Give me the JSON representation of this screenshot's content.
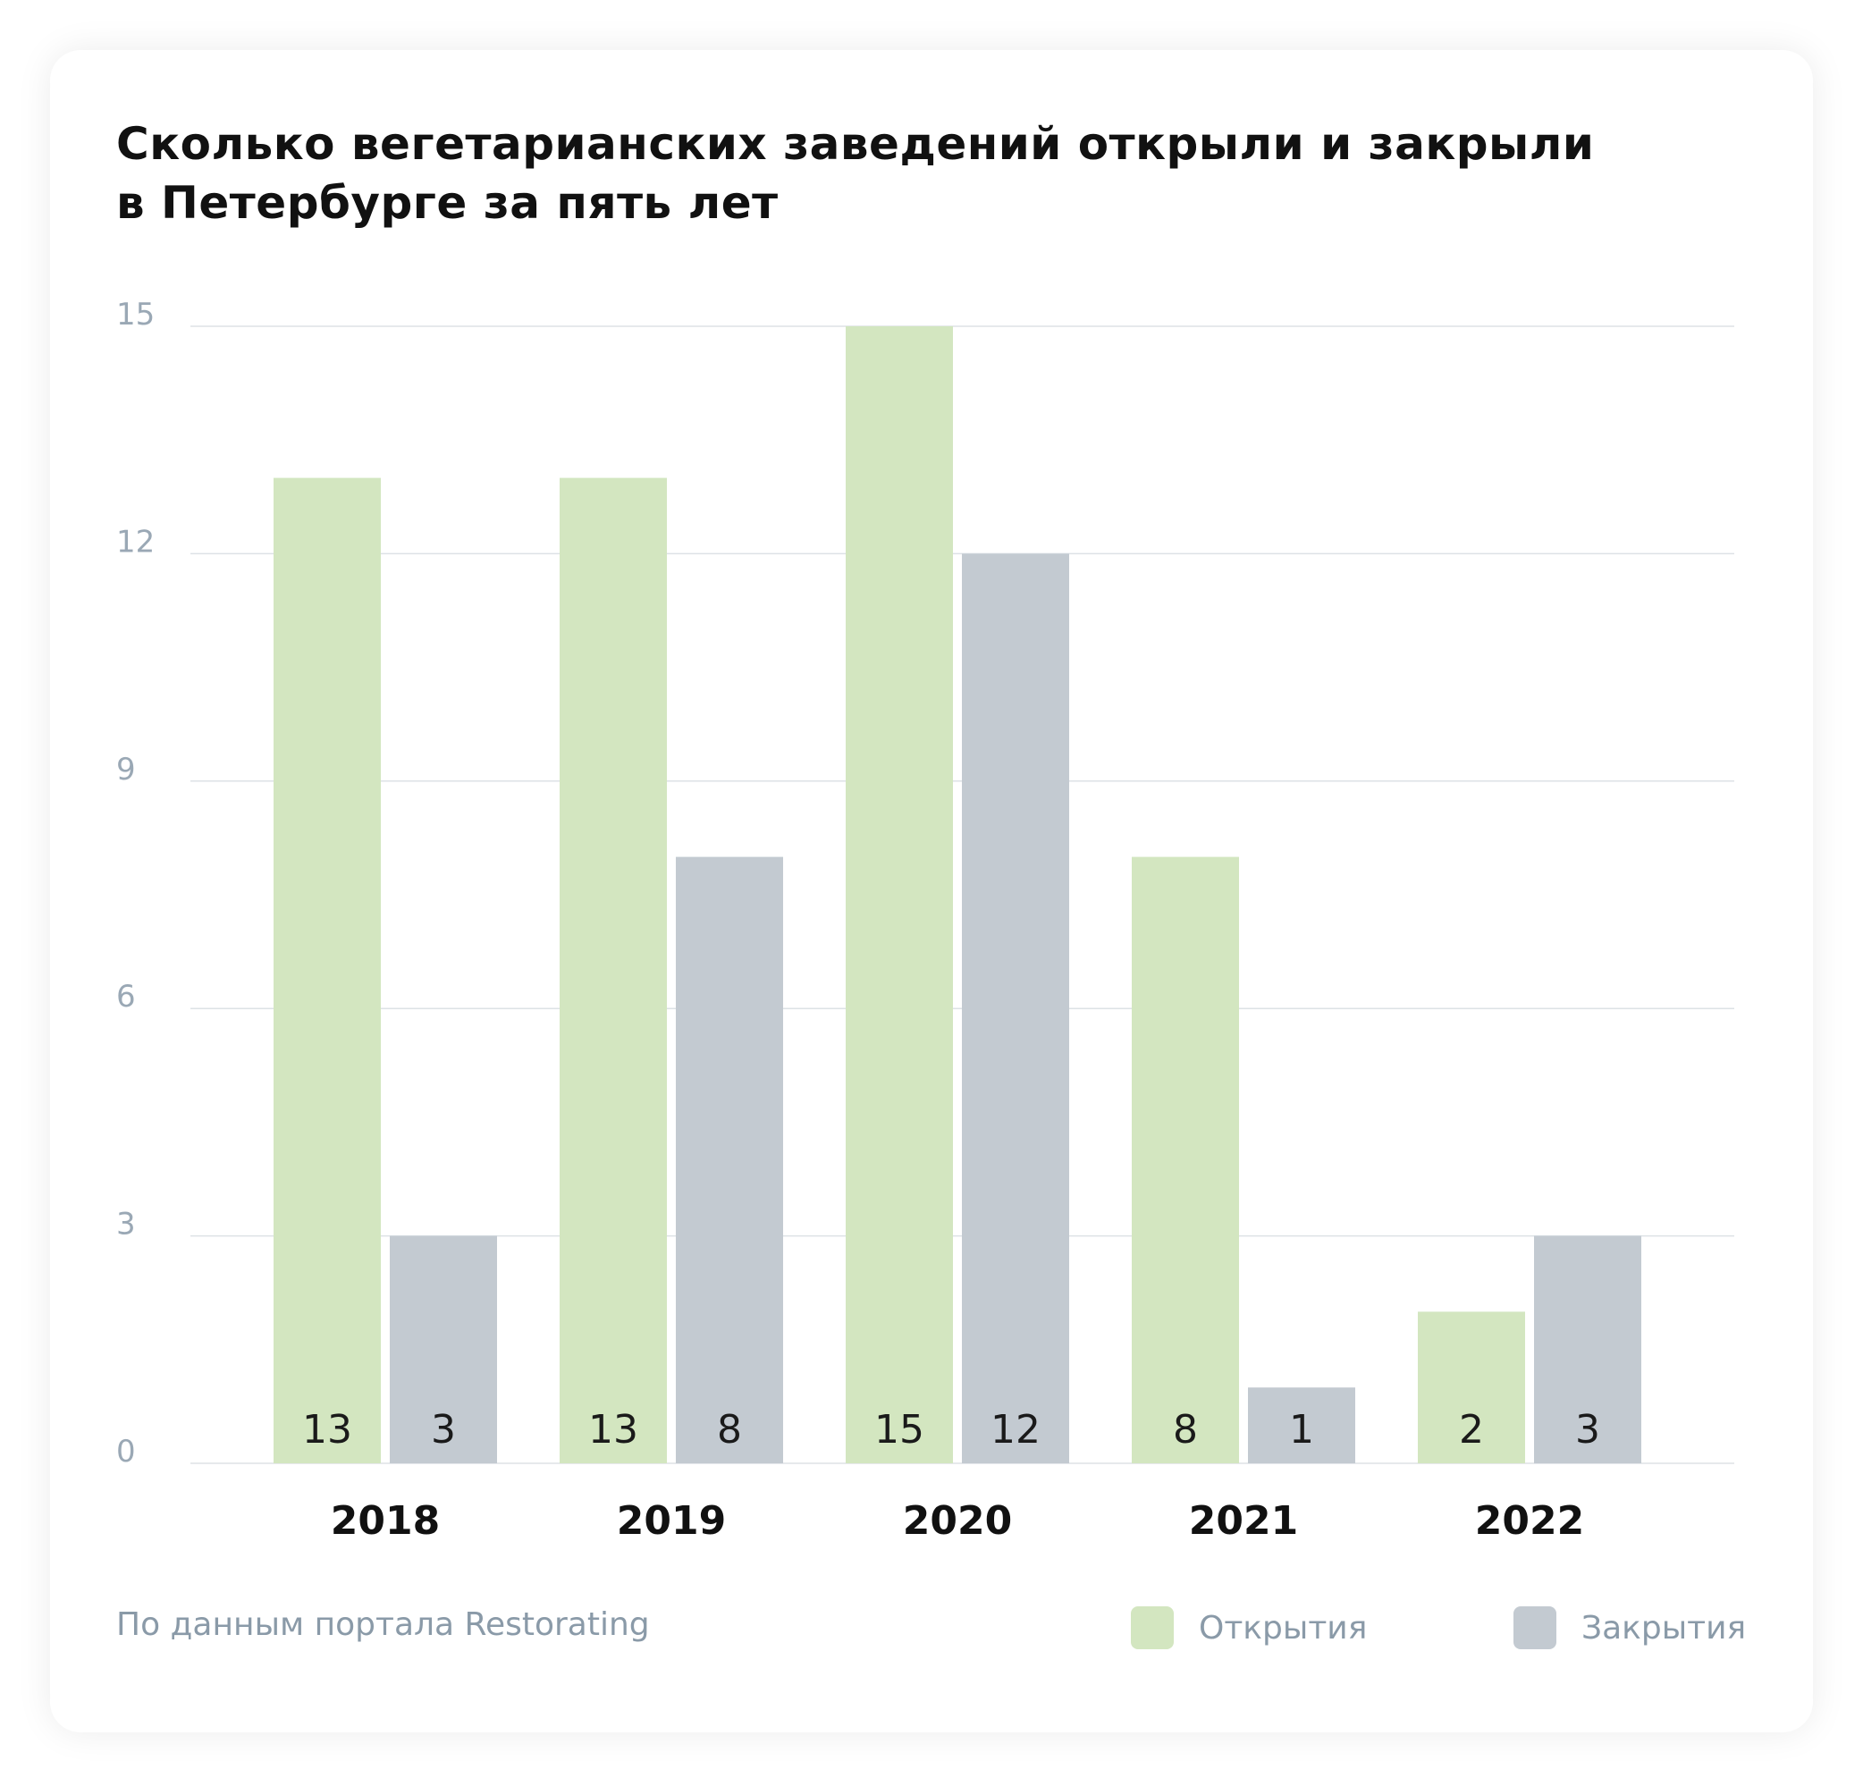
{
  "chart_data": {
    "type": "bar",
    "title": "Сколько вегетарианских заведений открыли и закрыли в Петербурге за пять лет",
    "title_lines": [
      "Сколько вегетарианских заведений открыли и закрыли",
      "в Петербурге за пять лет"
    ],
    "categories": [
      "2018",
      "2019",
      "2020",
      "2021",
      "2022"
    ],
    "series": [
      {
        "name": "Открытия",
        "color": "#d3e6c0",
        "values": [
          13,
          13,
          15,
          8,
          2
        ]
      },
      {
        "name": "Закрытия",
        "color": "#c3cad1",
        "values": [
          3,
          8,
          12,
          1,
          3
        ]
      }
    ],
    "yticks": [
      0,
      3,
      6,
      9,
      12,
      15
    ],
    "ylim": [
      0,
      15
    ],
    "xlabel": "",
    "ylabel": "",
    "grid": true,
    "legend_position": "bottom-right",
    "source": "По данным портала Restorating"
  }
}
